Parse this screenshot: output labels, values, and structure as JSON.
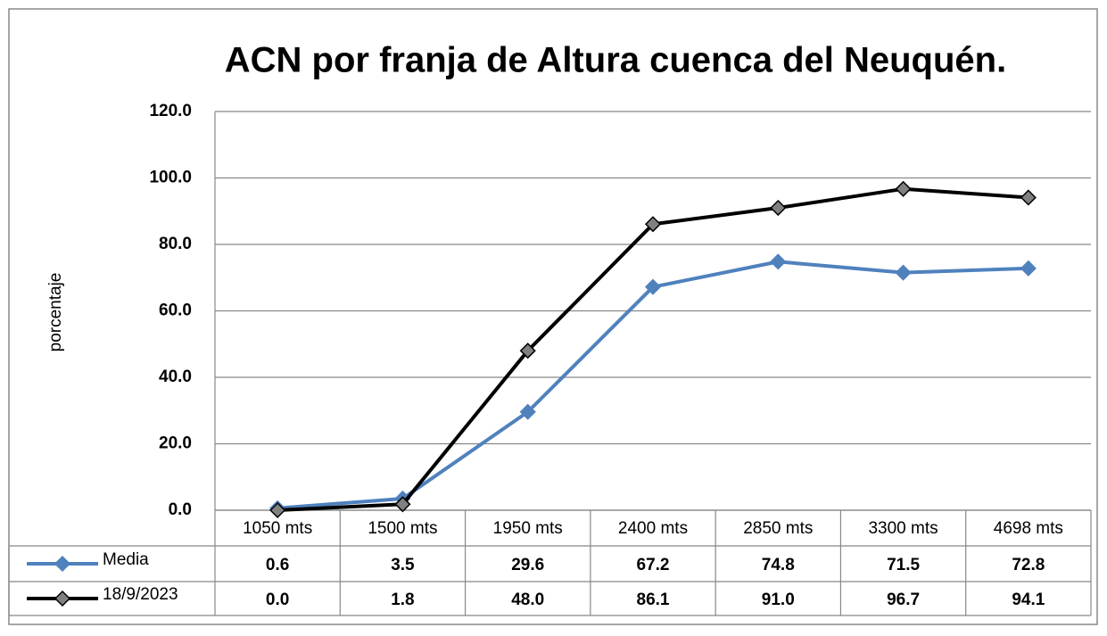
{
  "chart_data": {
    "type": "line",
    "title": "ACN por franja de Altura cuenca del Neuquén.",
    "y_label": "porcentaje",
    "categories": [
      "1050 mts",
      "1500 mts",
      "1950 mts",
      "2400 mts",
      "2850 mts",
      "3300 mts",
      "4698 mts"
    ],
    "series": [
      {
        "name": "Media",
        "color": "#4f81bd",
        "marker_color": "#4f81bd",
        "values": [
          0.6,
          3.5,
          29.6,
          67.2,
          74.8,
          71.5,
          72.8
        ],
        "value_labels": [
          "0.6",
          "3.5",
          "29.6",
          "67.2",
          "74.8",
          "71.5",
          "72.8"
        ]
      },
      {
        "name": "18/9/2023",
        "color": "#000000",
        "marker_color": "#808080",
        "values": [
          0,
          1.8,
          48,
          86.1,
          91,
          96.7,
          94.1
        ],
        "value_labels": [
          "0.0",
          "1.8",
          "48.0",
          "86.1",
          "91.0",
          "96.7",
          "94.1"
        ]
      }
    ],
    "ylim": [
      0,
      120
    ],
    "yticks": [
      {
        "value": 0,
        "label": "0.0"
      },
      {
        "value": 20,
        "label": "20.0"
      },
      {
        "value": 40,
        "label": "40.0"
      },
      {
        "value": 60,
        "label": "60.0"
      },
      {
        "value": 80,
        "label": "80.0"
      },
      {
        "value": 100,
        "label": "100.0"
      },
      {
        "value": 120,
        "label": "120.0"
      }
    ],
    "grid": true,
    "data_table": true
  }
}
